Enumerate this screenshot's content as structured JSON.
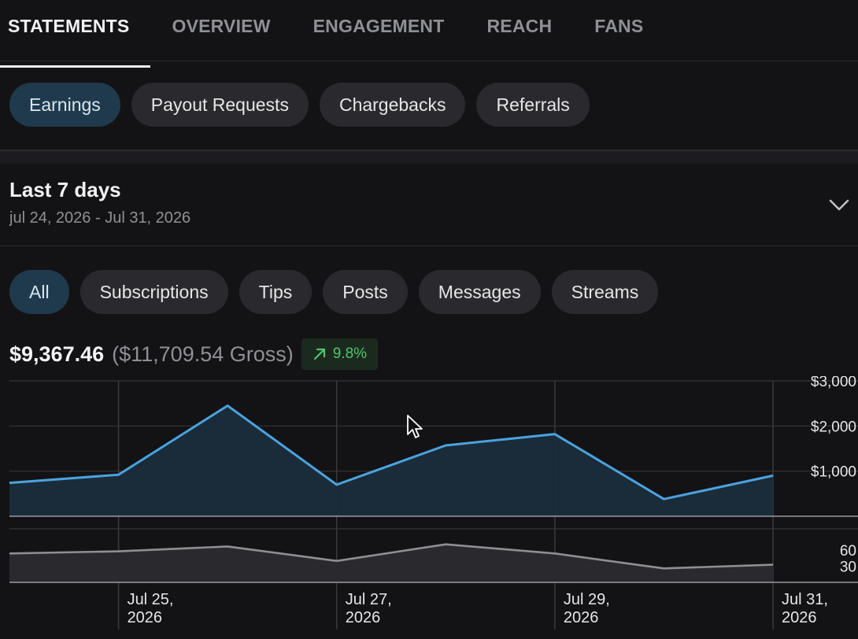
{
  "tabs": [
    "STATEMENTS",
    "OVERVIEW",
    "ENGAGEMENT",
    "REACH",
    "FANS"
  ],
  "sub_tabs": [
    "Earnings",
    "Payout Requests",
    "Chargebacks",
    "Referrals"
  ],
  "period": {
    "title": "Last 7 days",
    "range": "jul 24, 2026 - Jul 31, 2026"
  },
  "filters": [
    "All",
    "Subscriptions",
    "Tips",
    "Posts",
    "Messages",
    "Streams"
  ],
  "summary": {
    "net": "$9,367.46",
    "gross": "($11,709.54 Gross)",
    "change": "9.8%"
  },
  "colors": {
    "main_line": "#4aa3df",
    "sub_line": "#8e8e93",
    "accent": "#1f3a4d",
    "positive": "#4fc66a"
  },
  "chart_data": [
    {
      "type": "area",
      "x": [
        "2026-07-24",
        "2026-07-25",
        "2026-07-26",
        "2026-07-27",
        "2026-07-28",
        "2026-07-29",
        "2026-07-30",
        "2026-07-31"
      ],
      "values": [
        740,
        920,
        2450,
        700,
        1570,
        1820,
        380,
        900
      ],
      "ytick_labels": [
        "$3,000",
        "$2,000",
        "$1,000"
      ],
      "ytick_values": [
        3000,
        2000,
        1000
      ],
      "ylim": [
        0,
        3000
      ],
      "grid": true
    },
    {
      "type": "area",
      "x": [
        "2026-07-24",
        "2026-07-25",
        "2026-07-26",
        "2026-07-27",
        "2026-07-28",
        "2026-07-29",
        "2026-07-30",
        "2026-07-31"
      ],
      "values": [
        54,
        58,
        67,
        40,
        71,
        54,
        26,
        33
      ],
      "ytick_labels": [
        "60",
        "30"
      ],
      "ytick_values": [
        60,
        30
      ],
      "ylim": [
        0,
        100
      ],
      "grid": true
    }
  ],
  "xtick_labels": [
    {
      "line1": "Jul 25,",
      "line2": "2026"
    },
    {
      "line1": "Jul 27,",
      "line2": "2026"
    },
    {
      "line1": "Jul 29,",
      "line2": "2026"
    },
    {
      "line1": "Jul 31,",
      "line2": "2026"
    }
  ]
}
